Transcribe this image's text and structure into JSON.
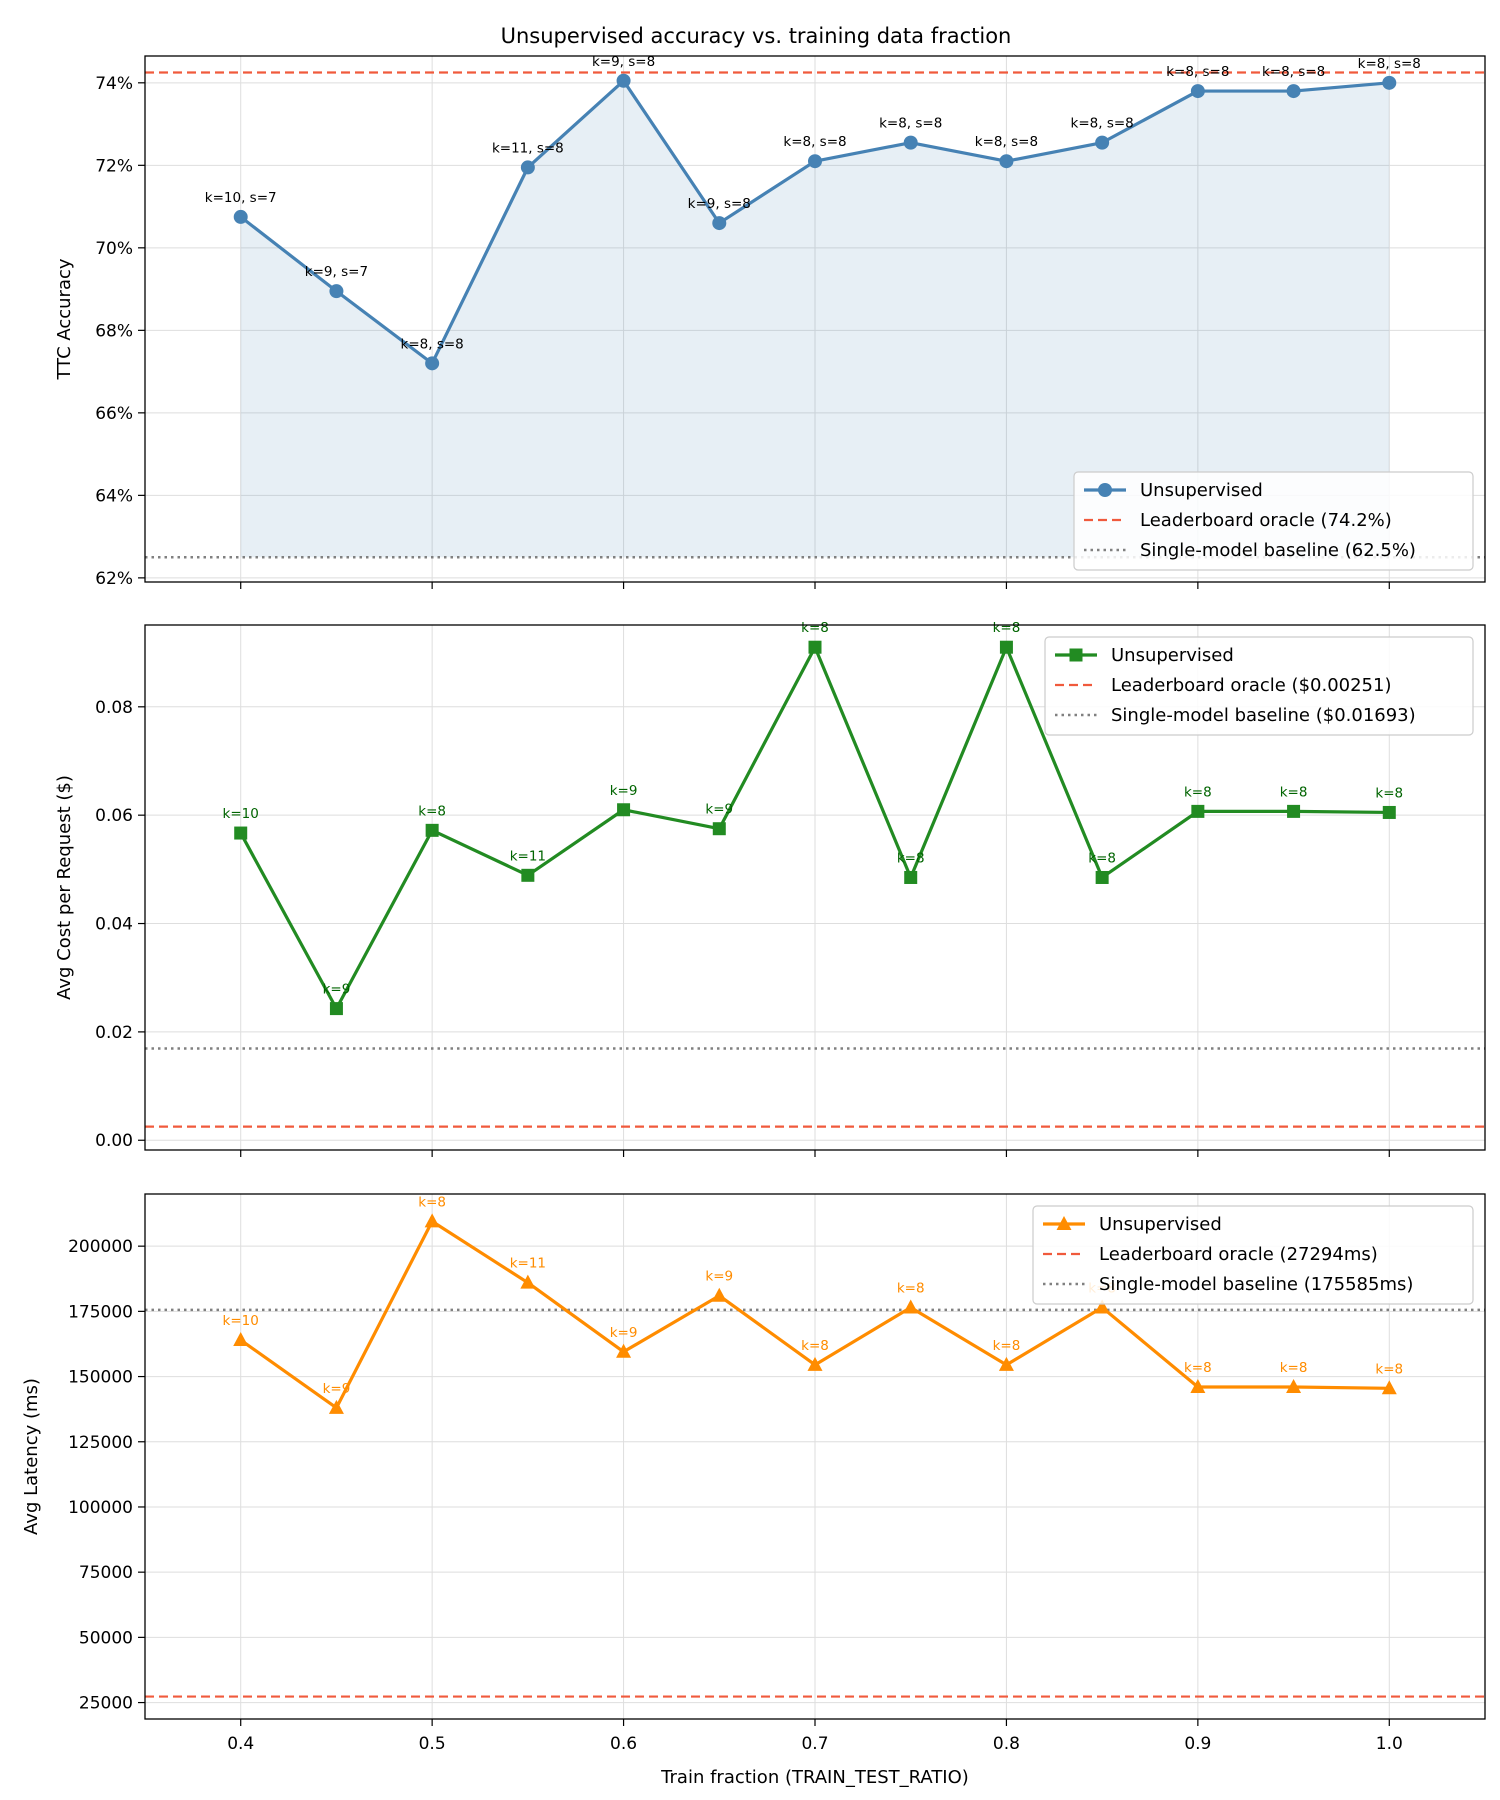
{
  "chart_data": {
    "title": "Unsupervised accuracy vs. training data fraction",
    "xlabel": "Train fraction (TRAIN_TEST_RATIO)",
    "x": [
      0.4,
      0.45,
      0.5,
      0.55,
      0.6,
      0.65,
      0.7,
      0.75,
      0.8,
      0.85,
      0.9,
      0.95,
      1.0
    ],
    "xlim": [
      0.35,
      1.05
    ],
    "xticks": [
      0.4,
      0.5,
      0.6,
      0.7,
      0.8,
      0.9,
      1.0
    ],
    "xtick_labels": [
      "0.4",
      "0.5",
      "0.6",
      "0.7",
      "0.8",
      "0.9",
      "1.0"
    ],
    "panels": [
      {
        "type": "line",
        "ylabel": "TTC Accuracy",
        "ylim": [
          61.9,
          74.65
        ],
        "yticks": [
          62,
          64,
          66,
          68,
          70,
          72,
          74
        ],
        "ytick_labels": [
          "62%",
          "64%",
          "66%",
          "68%",
          "70%",
          "72%",
          "74%"
        ],
        "fill_to": 62.5,
        "series": {
          "name": "Unsupervised",
          "color": "#4682b4",
          "marker": "circle",
          "values": [
            70.75,
            68.95,
            67.2,
            71.95,
            74.05,
            70.6,
            72.1,
            72.55,
            72.1,
            72.55,
            73.8,
            73.8,
            74.0
          ],
          "labels": [
            "k=10, s=7",
            "k=9, s=7",
            "k=8, s=8",
            "k=11, s=8",
            "k=9, s=8",
            "k=9, s=8",
            "k=8, s=8",
            "k=8, s=8",
            "k=8, s=8",
            "k=8, s=8",
            "k=8, s=8",
            "k=8, s=8",
            "k=8, s=8"
          ],
          "label_color": "#000000"
        },
        "oracle": {
          "value": 74.25,
          "label": "Leaderboard oracle (74.2%)",
          "color": "#f05a3c"
        },
        "baseline": {
          "value": 62.5,
          "label": "Single-model baseline (62.5%)",
          "color": "#808080"
        },
        "legend_loc": "lower right"
      },
      {
        "type": "line",
        "ylabel": "Avg Cost per Request ($)",
        "ylim": [
          -0.0018,
          0.0951
        ],
        "yticks": [
          0,
          0.02,
          0.04,
          0.06,
          0.08
        ],
        "ytick_labels": [
          "0.00",
          "0.02",
          "0.04",
          "0.06",
          "0.08"
        ],
        "series": {
          "name": "Unsupervised",
          "color": "#228b22",
          "marker": "square",
          "values": [
            0.0567,
            0.0243,
            0.0572,
            0.0489,
            0.061,
            0.0575,
            0.091,
            0.0485,
            0.091,
            0.0485,
            0.0607,
            0.0607,
            0.0605
          ],
          "labels": [
            "k=10",
            "k=9",
            "k=8",
            "k=11",
            "k=9",
            "k=9",
            "k=8",
            "k=8",
            "k=8",
            "k=8",
            "k=8",
            "k=8",
            "k=8"
          ],
          "label_color": "#006400"
        },
        "oracle": {
          "value": 0.00251,
          "label": "Leaderboard oracle ($0.00251)",
          "color": "#f05a3c"
        },
        "baseline": {
          "value": 0.01693,
          "label": "Single-model baseline ($0.01693)",
          "color": "#808080"
        },
        "legend_loc": "upper right"
      },
      {
        "type": "line",
        "ylabel": "Avg Latency (ms)",
        "ylim": [
          18700,
          220000
        ],
        "yticks": [
          25000,
          50000,
          75000,
          100000,
          125000,
          150000,
          175000,
          200000
        ],
        "ytick_labels": [
          "25000",
          "50000",
          "75000",
          "100000",
          "125000",
          "150000",
          "175000",
          "200000"
        ],
        "series": {
          "name": "Unsupervised",
          "color": "#ff8c00",
          "marker": "triangle",
          "values": [
            164000,
            138000,
            209500,
            186000,
            159500,
            181000,
            154500,
            176500,
            154500,
            176500,
            146000,
            146000,
            145500
          ],
          "labels": [
            "k=10",
            "k=9",
            "k=8",
            "k=11",
            "k=9",
            "k=9",
            "k=8",
            "k=8",
            "k=8",
            "k=8",
            "k=8",
            "k=8",
            "k=8"
          ],
          "label_color": "#ff8c00"
        },
        "oracle": {
          "value": 27294,
          "label": "Leaderboard oracle (27294ms)",
          "color": "#f05a3c"
        },
        "baseline": {
          "value": 175585,
          "label": "Single-model baseline (175585ms)",
          "color": "#808080"
        },
        "legend_loc": "upper right"
      }
    ]
  }
}
